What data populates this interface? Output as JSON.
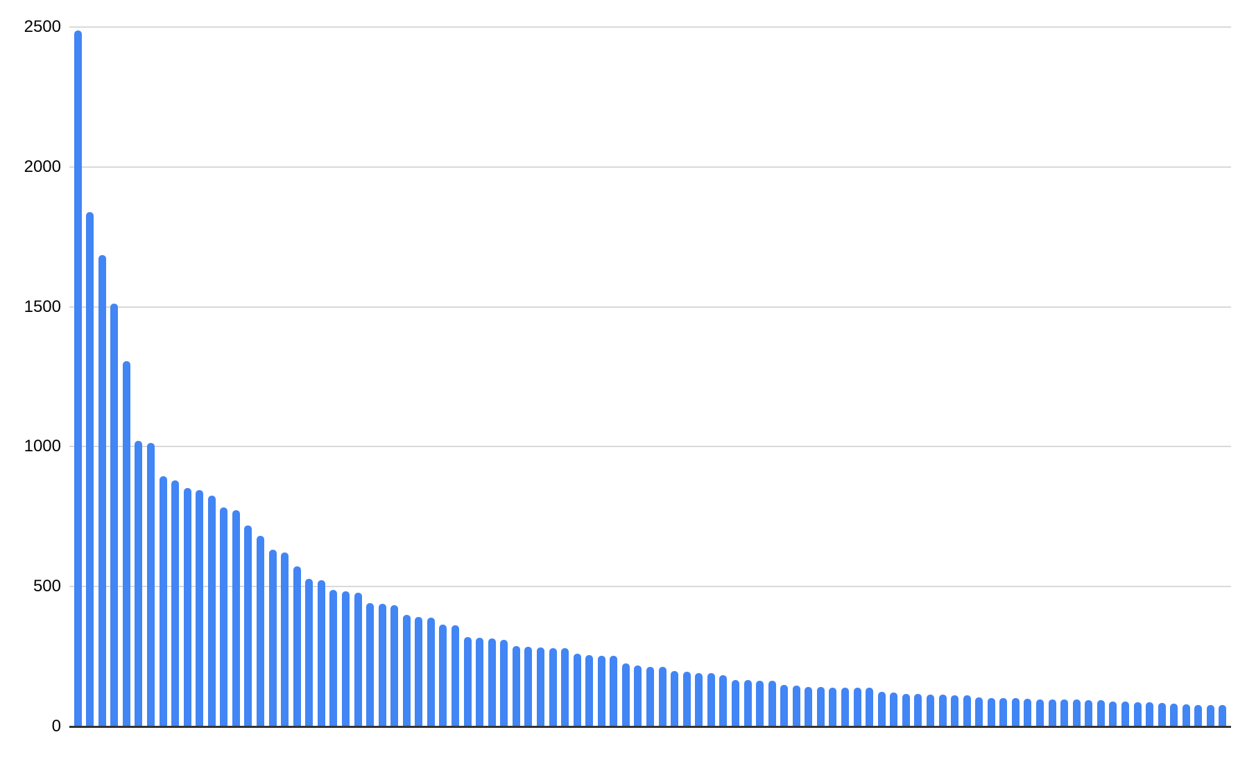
{
  "chart": {
    "background_color": "#ffffff",
    "bar_color": "#4285f4",
    "gridline_color": "#d9d9d9",
    "axis_line_color": "#333333",
    "label_color": "#000000"
  },
  "chart_data": {
    "type": "bar",
    "title": "",
    "xlabel": "",
    "ylabel": "",
    "legend_position": "none",
    "grid": "horizontal",
    "x_axis_labels_visible": false,
    "ylim": [
      0,
      2500
    ],
    "y_ticks": [
      0,
      500,
      1000,
      1500,
      2000,
      2500
    ],
    "y_tick_labels": [
      "0",
      "500",
      "1000",
      "1500",
      "2000",
      "2500"
    ],
    "bar_count": 95,
    "values": [
      2488,
      1838,
      1685,
      1512,
      1306,
      1020,
      1013,
      895,
      880,
      852,
      845,
      826,
      782,
      772,
      718,
      682,
      633,
      622,
      572,
      528,
      522,
      487,
      483,
      477,
      440,
      438,
      434,
      399,
      391,
      388,
      364,
      361,
      320,
      317,
      314,
      309,
      287,
      285,
      283,
      281,
      280,
      260,
      256,
      254,
      252,
      225,
      217,
      214,
      212,
      199,
      197,
      192,
      190,
      183,
      167,
      165,
      164,
      163,
      149,
      145,
      142,
      141,
      140,
      139,
      139,
      138,
      124,
      121,
      117,
      116,
      115,
      114,
      112,
      111,
      103,
      102,
      102,
      101,
      98,
      97,
      97,
      96,
      96,
      95,
      94,
      90,
      89,
      87,
      86,
      84,
      81,
      79,
      78,
      77,
      76
    ]
  }
}
